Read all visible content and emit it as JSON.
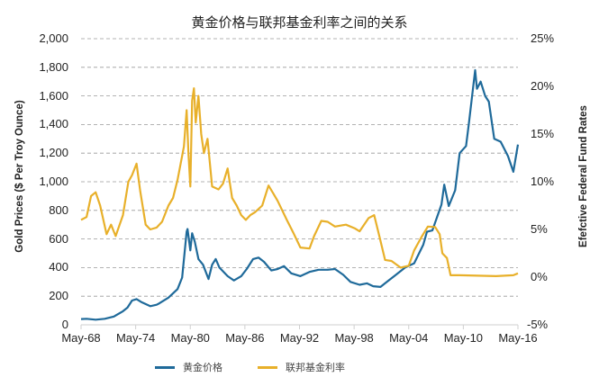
{
  "chart_data": {
    "type": "line",
    "title": "黄金价格与联邦基金利率之间的关系",
    "xlabel": "",
    "ylabel_left": "Gold Prices ($ Per Troy Ounce)",
    "ylabel_right": "Efefctive Federal Fund Rates",
    "x_ticks": [
      "May-68",
      "May-74",
      "May-80",
      "May-86",
      "May-92",
      "May-98",
      "May-04",
      "May-10",
      "May-16"
    ],
    "y_left_ticks": [
      "2,000",
      "1,800",
      "1,600",
      "1,400",
      "1,200",
      "1,000",
      "800",
      "600",
      "400",
      "200",
      "0"
    ],
    "y_right_ticks": [
      "25%",
      "20%",
      "15%",
      "10%",
      "5%",
      "0%",
      "-5%"
    ],
    "ylim_left": [
      0,
      2000
    ],
    "ylim_right": [
      -5,
      25
    ],
    "xlim": [
      1968.4,
      2016.4
    ],
    "grid": "horizontal dashed",
    "legend_position": "bottom",
    "series": [
      {
        "name": "黄金价格",
        "axis": "left",
        "color": "#1f6a9a",
        "x": [
          1968.4,
          1969,
          1970,
          1971,
          1972,
          1973,
          1973.5,
          1974,
          1974.5,
          1975,
          1976,
          1976.7,
          1977,
          1978,
          1979,
          1979.5,
          1980,
          1980.1,
          1980.4,
          1980.6,
          1980.9,
          1981.3,
          1981.8,
          1982.4,
          1982.8,
          1983.2,
          1983.6,
          1984.5,
          1985.2,
          1986,
          1986.6,
          1987.3,
          1987.9,
          1988.5,
          1989.3,
          1990,
          1990.7,
          1991.5,
          1992.5,
          1993.5,
          1994.5,
          1995.5,
          1996.3,
          1997.2,
          1998,
          1999,
          1999.8,
          2000.5,
          2001.3,
          2002,
          2003,
          2004,
          2005,
          2006,
          2006.4,
          2007,
          2008,
          2008.3,
          2008.8,
          2009.5,
          2010,
          2010.7,
          2011,
          2011.7,
          2011.9,
          2012.3,
          2012.8,
          2013.2,
          2013.8,
          2014.5,
          2015.3,
          2015.9,
          2016.4
        ],
        "values": [
          40,
          42,
          36,
          42,
          58,
          95,
          120,
          170,
          180,
          160,
          130,
          140,
          150,
          190,
          250,
          330,
          650,
          670,
          520,
          640,
          580,
          460,
          420,
          320,
          420,
          460,
          400,
          340,
          310,
          340,
          390,
          460,
          470,
          440,
          380,
          390,
          410,
          360,
          340,
          370,
          385,
          385,
          390,
          350,
          300,
          280,
          290,
          270,
          265,
          300,
          350,
          400,
          430,
          560,
          650,
          660,
          840,
          980,
          830,
          940,
          1200,
          1250,
          1400,
          1780,
          1650,
          1700,
          1600,
          1560,
          1300,
          1280,
          1180,
          1070,
          1260
        ]
      },
      {
        "name": "联邦基金利率",
        "axis": "right",
        "color": "#e8b02a",
        "x": [
          1968.4,
          1969,
          1969.5,
          1970,
          1970.5,
          1971.2,
          1971.7,
          1972.2,
          1973,
          1973.6,
          1974,
          1974.5,
          1974.9,
          1975.5,
          1976,
          1976.7,
          1977.3,
          1978,
          1978.5,
          1979,
          1979.7,
          1980,
          1980.2,
          1980.4,
          1980.6,
          1980.8,
          1981,
          1981.3,
          1981.6,
          1981.9,
          1982.3,
          1982.8,
          1983.5,
          1984,
          1984.5,
          1985,
          1985.5,
          1986,
          1986.5,
          1987,
          1987.5,
          1988.3,
          1989,
          1989.5,
          1990,
          1991,
          1991.7,
          1992.5,
          1993.5,
          1994,
          1994.8,
          1995.5,
          1996.3,
          1997.5,
          1998.5,
          1999,
          2000,
          2000.6,
          2001.2,
          2001.8,
          2002.5,
          2003.5,
          2004.4,
          2005,
          2005.8,
          2006.5,
          2007.3,
          2007.8,
          2008.1,
          2008.6,
          2009,
          2010,
          2012,
          2014,
          2015.9,
          2016.4
        ],
        "values": [
          6,
          6.3,
          8.5,
          8.9,
          7.5,
          4.5,
          5.5,
          4.3,
          6.5,
          10,
          10.7,
          11.9,
          9,
          5.5,
          5,
          5.2,
          5.8,
          7.5,
          8.3,
          10.2,
          13.7,
          17.5,
          13,
          9.5,
          18.5,
          19.8,
          16.2,
          19,
          15,
          13,
          14.5,
          9.5,
          9.2,
          9.8,
          11.4,
          8.3,
          7.5,
          6.5,
          6,
          6.5,
          6.8,
          7.5,
          9.6,
          8.8,
          8,
          6,
          4.7,
          3.1,
          3,
          4.3,
          5.9,
          5.8,
          5.3,
          5.5,
          5.1,
          4.8,
          6.2,
          6.5,
          4.2,
          1.8,
          1.7,
          1,
          1.2,
          2.8,
          4.2,
          5.3,
          5.25,
          4.5,
          2.5,
          2,
          0.2,
          0.2,
          0.15,
          0.1,
          0.2,
          0.4
        ]
      }
    ]
  },
  "legend": {
    "items": [
      {
        "label": "黄金价格",
        "color": "#1f6a9a"
      },
      {
        "label": "联邦基金利率",
        "color": "#e8b02a"
      }
    ]
  }
}
